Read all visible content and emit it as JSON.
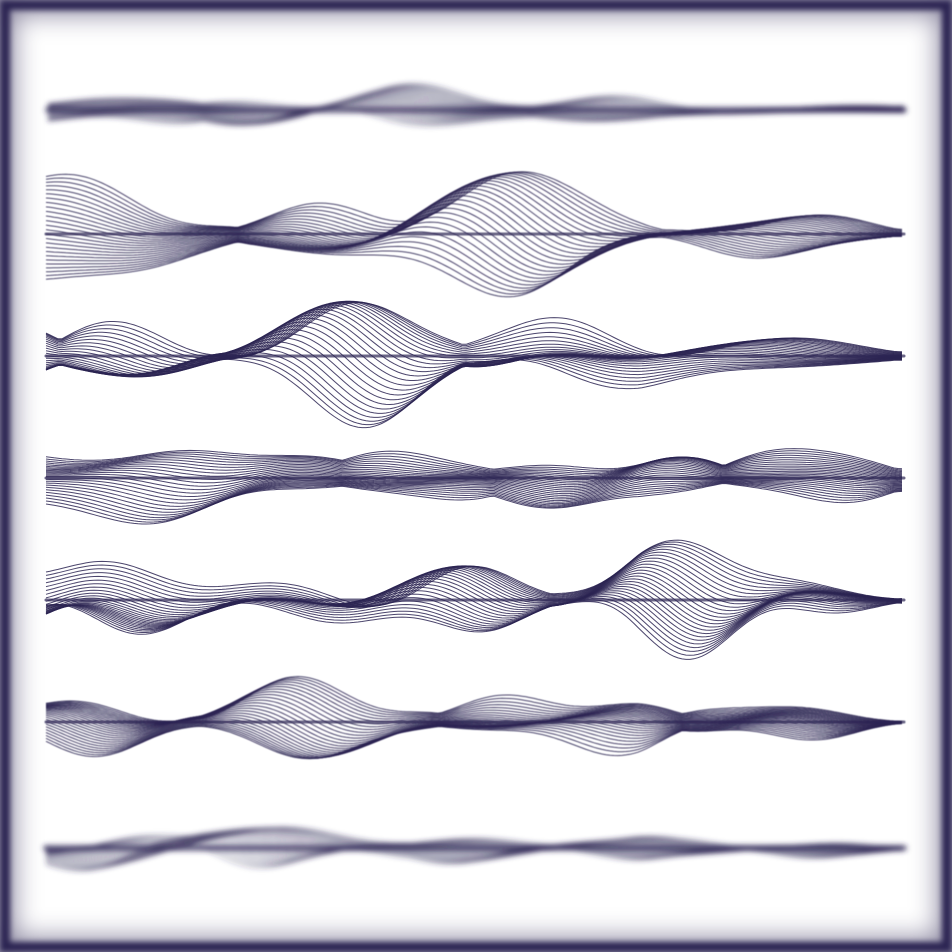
{
  "artwork": {
    "stroke_color": "#2b2452",
    "background_color": "#ffffff",
    "frame_color": "#2b2452",
    "band_count": 7,
    "lines_per_band": 26
  }
}
